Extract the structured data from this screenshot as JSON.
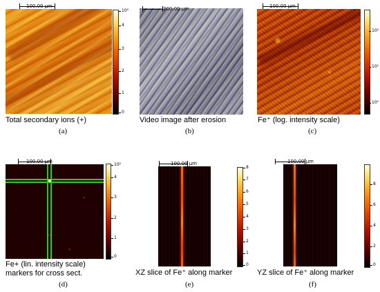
{
  "panels": {
    "a": {
      "scale_label": "100.00 µm",
      "caption": "Total secondary ions (+)",
      "letter": "(a)",
      "ticks": [
        "10⁵",
        "4",
        "3",
        "2",
        "1",
        "0"
      ]
    },
    "b": {
      "scale_label": "200.00 µm",
      "caption": "Video image after erosion",
      "letter": "(b)"
    },
    "c": {
      "scale_label": "100.00 µm",
      "caption": "Fe⁺ (log. intensity scale)",
      "letter": "(c)",
      "ticks": [
        "10²",
        "10¹",
        "10⁰"
      ]
    },
    "d": {
      "scale_label": "100.00 µm",
      "caption_line1": "Fe+ (lin. intensity scale)",
      "caption_line2": "markers for cross sect.",
      "letter": "(d)",
      "ticks": [
        "10²",
        "4",
        "3",
        "2",
        "1",
        "0"
      ]
    },
    "e": {
      "scale_label": "100.00 µm",
      "caption": "XZ slice of Fe⁺ along marker",
      "letter": "(e)",
      "ticks": [
        "8",
        "7",
        "6",
        "5",
        "4",
        "3",
        "2",
        "1",
        "0"
      ]
    },
    "f": {
      "scale_label": "100.00 µm",
      "caption": "YZ slice of Fe⁺ along marker",
      "letter": "(f)",
      "ticks": [
        "8",
        "6",
        "4",
        "2",
        "0"
      ]
    }
  },
  "colors": {
    "cross_marker": "#23d11f",
    "scale_dark": "#000000",
    "scale_light": "#ffffff"
  }
}
